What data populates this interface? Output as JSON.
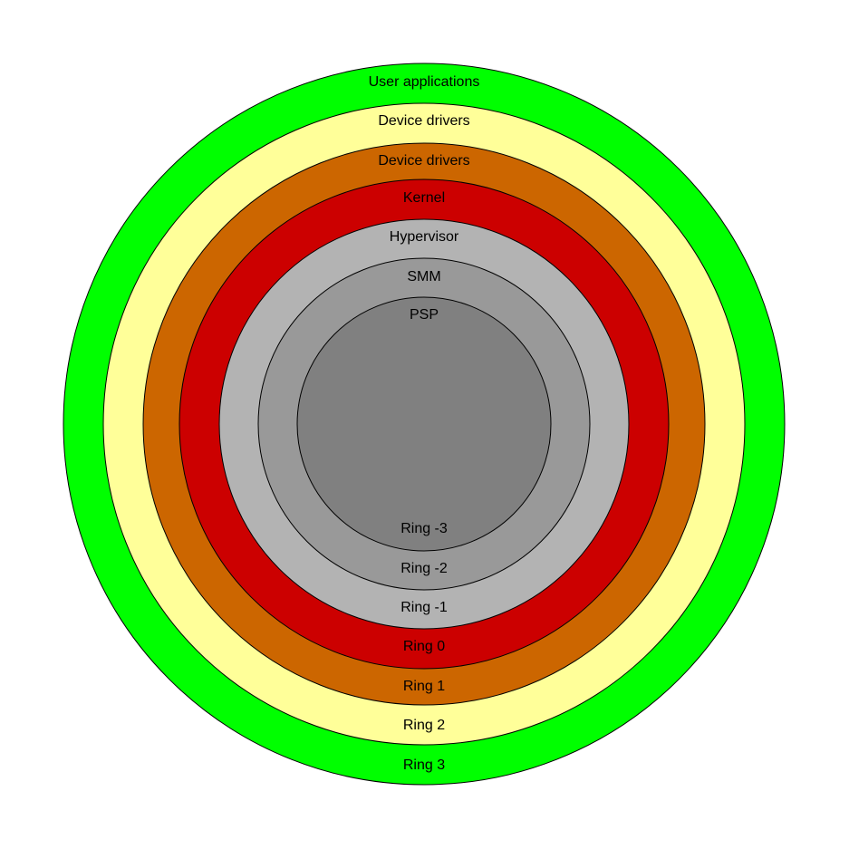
{
  "diagram": {
    "rings": [
      {
        "role": "User applications",
        "ring": "Ring 3",
        "color": "#00ff00"
      },
      {
        "role": "Device drivers",
        "ring": "Ring 2",
        "color": "#ffff99"
      },
      {
        "role": "Device drivers",
        "ring": "Ring 1",
        "color": "#cc6600"
      },
      {
        "role": "Kernel",
        "ring": "Ring 0",
        "color": "#cc0000"
      },
      {
        "role": "Hypervisor",
        "ring": "Ring -1",
        "color": "#b3b3b3"
      },
      {
        "role": "SMM",
        "ring": "Ring -2",
        "color": "#999999"
      },
      {
        "role": "PSP",
        "ring": "Ring -3",
        "color": "#808080"
      }
    ]
  }
}
